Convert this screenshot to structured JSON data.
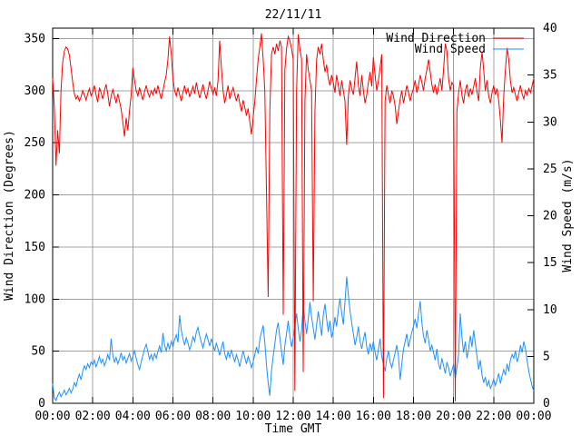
{
  "colors": {
    "wind_direction": "#ff0000",
    "wind_speed": "#1e90ff",
    "grid": "#a0a0a0",
    "border": "#000000",
    "text": "#000000",
    "background": "#ffffff"
  },
  "chart_data": {
    "type": "line",
    "title": "22/11/11",
    "grid": true,
    "legend_position": "top-right-inside",
    "sample_interval_minutes": 5,
    "x_axis": {
      "label": "Time GMT",
      "range_hours": [
        0,
        24
      ],
      "tick_step_hours": 2,
      "ticks": [
        "00:00",
        "02:00",
        "04:00",
        "06:00",
        "08:00",
        "10:00",
        "12:00",
        "14:00",
        "16:00",
        "18:00",
        "20:00",
        "22:00",
        "00:00"
      ]
    },
    "y_axis_left": {
      "label": "Wind Direction (Degrees)",
      "range": [
        0,
        360
      ],
      "ticks": [
        0,
        50,
        100,
        150,
        200,
        250,
        300,
        350
      ]
    },
    "y_axis_right": {
      "label": "Wind Speed (m/s)",
      "range": [
        0,
        40
      ],
      "ticks": [
        0,
        5,
        10,
        15,
        20,
        25,
        30,
        35,
        40
      ]
    },
    "series": [
      {
        "name": "Wind Direction",
        "axis": "left",
        "color": "#ff0000",
        "values": [
          312,
          285,
          228,
          262,
          240,
          300,
          327,
          338,
          342,
          340,
          334,
          322,
          308,
          297,
          292,
          295,
          290,
          294,
          300,
          296,
          291,
          297,
          302,
          295,
          299,
          305,
          296,
          289,
          303,
          298,
          292,
          300,
          306,
          297,
          285,
          295,
          301,
          295,
          288,
          297,
          290,
          282,
          270,
          256,
          274,
          262,
          281,
          296,
          322,
          310,
          300,
          295,
          303,
          297,
          291,
          299,
          305,
          298,
          294,
          300,
          296,
          302,
          297,
          305,
          298,
          292,
          300,
          308,
          315,
          330,
          352,
          335,
          312,
          300,
          295,
          303,
          296,
          290,
          298,
          305,
          297,
          302,
          294,
          299,
          304,
          297,
          308,
          300,
          293,
          299,
          306,
          298,
          292,
          300,
          309,
          302,
          297,
          303,
          295,
          310,
          348,
          322,
          300,
          288,
          296,
          305,
          292,
          298,
          303,
          296,
          290,
          297,
          288,
          280,
          291,
          284,
          276,
          283,
          270,
          258,
          274,
          290,
          310,
          330,
          342,
          355,
          330,
          300,
          200,
          102,
          280,
          335,
          342,
          335,
          345,
          338,
          348,
          342,
          85,
          320,
          340,
          352,
          348,
          340,
          330,
          12,
          300,
          354,
          340,
          330,
          30,
          290,
          335,
          320,
          310,
          300,
          98,
          280,
          330,
          342,
          335,
          345,
          330,
          318,
          325,
          312,
          305,
          315,
          308,
          298,
          315,
          305,
          295,
          310,
          300,
          290,
          248,
          295,
          310,
          302,
          296,
          312,
          328,
          305,
          295,
          315,
          300,
          288,
          296,
          308,
          318,
          304,
          332,
          315,
          300,
          310,
          322,
          335,
          5,
          290,
          305,
          296,
          288,
          300,
          295,
          285,
          268,
          280,
          292,
          300,
          288,
          296,
          305,
          298,
          290,
          297,
          302,
          310,
          298,
          305,
          315,
          308,
          300,
          312,
          320,
          330,
          318,
          306,
          298,
          306,
          296,
          304,
          312,
          300,
          320,
          345,
          338,
          312,
          300,
          308,
          305,
          2,
          280,
          298,
          310,
          295,
          288,
          300,
          306,
          294,
          302,
          296,
          304,
          312,
          299,
          290,
          322,
          337,
          320,
          300,
          310,
          295,
          288,
          298,
          305,
          296,
          302,
          290,
          272,
          250,
          295,
          320,
          341,
          330,
          310,
          298,
          303,
          296,
          290,
          298,
          305,
          297,
          292,
          300,
          296,
          302,
          298,
          305,
          312
        ]
      },
      {
        "name": "Wind Speed",
        "axis": "right",
        "color": "#1e90ff",
        "values": [
          2.1,
          0.6,
          0.3,
          0.8,
          1.2,
          0.7,
          1.0,
          1.4,
          0.9,
          1.2,
          1.6,
          1.1,
          1.5,
          2.2,
          1.8,
          2.6,
          3.1,
          2.5,
          3.4,
          4.0,
          3.6,
          4.2,
          3.8,
          4.4,
          4.1,
          4.6,
          3.9,
          4.4,
          5.0,
          4.3,
          4.7,
          4.0,
          4.5,
          5.2,
          4.6,
          6.9,
          5.1,
          4.4,
          4.9,
          4.2,
          4.7,
          5.4,
          4.6,
          5.0,
          4.3,
          4.8,
          5.3,
          4.5,
          5.0,
          5.6,
          4.8,
          4.1,
          3.6,
          4.4,
          5.1,
          5.8,
          6.3,
          5.5,
          4.7,
          5.2,
          4.6,
          5.3,
          4.8,
          5.5,
          6.1,
          5.4,
          7.5,
          6.2,
          5.6,
          6.4,
          5.8,
          6.6,
          6.0,
          6.8,
          7.3,
          6.5,
          9.4,
          7.8,
          6.9,
          6.2,
          7.0,
          6.4,
          5.7,
          6.3,
          7.1,
          6.6,
          7.6,
          8.1,
          7.2,
          6.5,
          5.9,
          6.7,
          7.4,
          6.8,
          6.1,
          6.9,
          6.2,
          5.6,
          6.4,
          5.8,
          5.1,
          5.9,
          6.6,
          5.3,
          4.7,
          5.5,
          4.9,
          5.7,
          5.0,
          4.4,
          5.2,
          4.6,
          3.9,
          4.8,
          5.6,
          4.9,
          4.2,
          5.0,
          4.5,
          3.8,
          4.4,
          5.2,
          6.0,
          5.3,
          6.8,
          7.6,
          8.3,
          6.5,
          4.0,
          2.2,
          0.8,
          3.5,
          5.0,
          6.4,
          7.8,
          8.6,
          7.0,
          5.5,
          4.1,
          6.2,
          7.4,
          8.8,
          7.2,
          6.0,
          7.0,
          8.2,
          9.6,
          8.0,
          6.6,
          7.8,
          10.4,
          8.8,
          7.4,
          9.0,
          10.8,
          9.2,
          8.0,
          6.8,
          8.4,
          9.8,
          8.6,
          7.2,
          9.4,
          10.6,
          9.0,
          7.6,
          8.8,
          7.0,
          7.8,
          9.2,
          8.2,
          10.0,
          11.2,
          9.6,
          8.4,
          10.8,
          13.5,
          11.6,
          9.8,
          8.6,
          7.4,
          6.2,
          7.0,
          8.2,
          6.6,
          5.8,
          6.8,
          7.6,
          6.0,
          5.2,
          6.4,
          5.6,
          6.6,
          5.4,
          4.6,
          5.8,
          6.9,
          5.0,
          4.2,
          3.4,
          4.8,
          5.6,
          4.4,
          3.8,
          4.6,
          5.4,
          6.2,
          5.0,
          2.5,
          4.2,
          5.8,
          6.6,
          7.4,
          6.0,
          6.8,
          7.6,
          8.2,
          9.0,
          8.0,
          9.6,
          10.9,
          8.6,
          7.2,
          6.4,
          7.8,
          6.8,
          5.6,
          6.2,
          5.4,
          4.6,
          5.8,
          4.2,
          3.6,
          4.8,
          4.0,
          3.2,
          4.4,
          3.8,
          2.9,
          3.5,
          4.2,
          2.6,
          3.8,
          5.2,
          9.6,
          7.0,
          5.4,
          6.6,
          4.8,
          5.8,
          7.2,
          6.0,
          7.8,
          6.4,
          5.0,
          3.6,
          4.6,
          3.0,
          2.2,
          2.8,
          1.8,
          2.4,
          1.6,
          2.0,
          2.6,
          1.9,
          2.5,
          3.2,
          2.1,
          2.9,
          3.6,
          3.0,
          4.2,
          3.4,
          4.6,
          5.2,
          4.8,
          5.6,
          4.4,
          5.0,
          6.2,
          5.4,
          6.6,
          5.8,
          4.6,
          3.4,
          2.6,
          1.8,
          1.3
        ]
      }
    ]
  }
}
